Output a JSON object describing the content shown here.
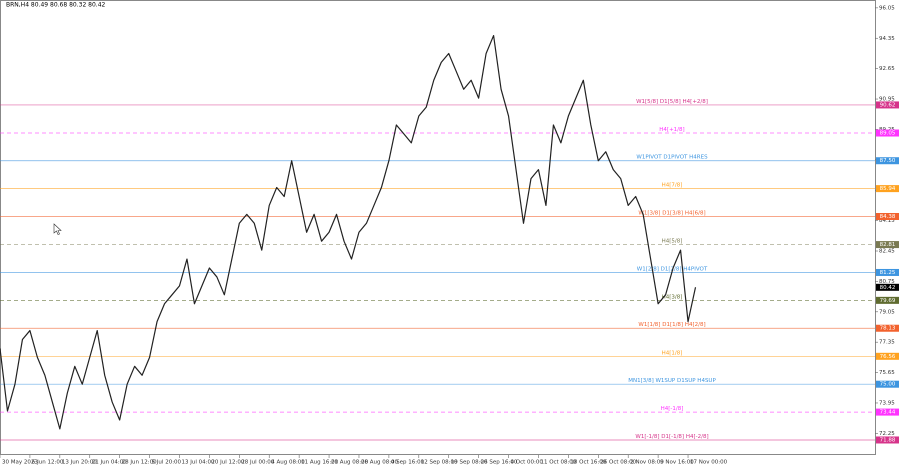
{
  "chart_data": {
    "type": "line",
    "symbol_info": "BRN,H4 80.49 80.68 80.32 80.42",
    "ylim": [
      71.04,
      96.49
    ],
    "yticks": [
      96.05,
      94.35,
      92.65,
      90.95,
      89.25,
      87.55,
      85.85,
      84.15,
      82.45,
      80.75,
      79.05,
      77.35,
      75.65,
      73.95,
      72.25
    ],
    "xlim": [
      0,
      117
    ],
    "xticks": [
      {
        "value": 0,
        "label": "30 May 2023"
      },
      {
        "value": 4,
        "label": "6 Jun 12:00"
      },
      {
        "value": 8,
        "label": "13 Jun 20:00"
      },
      {
        "value": 12,
        "label": "21 Jun 04:00"
      },
      {
        "value": 16,
        "label": "28 Jun 12:00"
      },
      {
        "value": 20,
        "label": "5 Jul 20:00"
      },
      {
        "value": 24,
        "label": "13 Jul 04:00"
      },
      {
        "value": 28,
        "label": "20 Jul 12:00"
      },
      {
        "value": 32,
        "label": "28 Jul 00:00"
      },
      {
        "value": 36,
        "label": "4 Aug 08:00"
      },
      {
        "value": 40,
        "label": "11 Aug 16:00"
      },
      {
        "value": 44,
        "label": "21 Aug 08:00"
      },
      {
        "value": 48,
        "label": "28 Aug 08:00"
      },
      {
        "value": 52,
        "label": "4 Sep 16:00"
      },
      {
        "value": 56,
        "label": "12 Sep 08:00"
      },
      {
        "value": 60,
        "label": "19 Sep 08:00"
      },
      {
        "value": 64,
        "label": "26 Sep 16:00"
      },
      {
        "value": 68,
        "label": "4 Oct 00:00"
      },
      {
        "value": 72,
        "label": "11 Oct 08:00"
      },
      {
        "value": 76,
        "label": "18 Oct 16:00"
      },
      {
        "value": 80,
        "label": "26 Oct 08:00"
      },
      {
        "value": 84,
        "label": "2 Nov 08:00"
      },
      {
        "value": 88,
        "label": "9 Nov 16:00"
      },
      {
        "value": 92,
        "label": "17 Nov 00:00"
      }
    ],
    "series": [
      {
        "name": "BRN,H4",
        "color": "#222222",
        "values": [
          77.0,
          73.5,
          75.0,
          77.5,
          78.0,
          76.5,
          75.5,
          74.0,
          72.5,
          74.5,
          76.0,
          75.0,
          76.5,
          78.0,
          75.5,
          74.0,
          73.0,
          75.0,
          76.0,
          75.5,
          76.5,
          78.5,
          79.5,
          80.0,
          80.5,
          82.0,
          79.5,
          80.5,
          81.5,
          81.0,
          80.0,
          82.0,
          84.0,
          84.5,
          84.0,
          82.5,
          85.0,
          86.0,
          85.5,
          87.5,
          85.5,
          83.5,
          84.5,
          83.0,
          83.5,
          84.5,
          83.0,
          82.0,
          83.5,
          84.0,
          85.0,
          86.0,
          87.5,
          89.5,
          89.0,
          88.5,
          90.0,
          90.5,
          92.0,
          93.0,
          93.5,
          92.5,
          91.5,
          92.0,
          91.0,
          93.5,
          94.5,
          91.5,
          90.0,
          87.0,
          84.0,
          86.5,
          87.0,
          85.0,
          89.5,
          88.5,
          90.0,
          91.0,
          92.0,
          89.5,
          87.5,
          88.0,
          87.0,
          86.5,
          85.0,
          85.5,
          84.5,
          82.0,
          79.5,
          80.0,
          81.5,
          82.5,
          78.5,
          80.42
        ]
      }
    ],
    "levels": [
      {
        "value": 90.62,
        "label": "W1[5/8] D1[5/8] H4[+2/8]",
        "color": "#d6338a",
        "dashed": false
      },
      {
        "value": 89.05,
        "label": "H4[+1/8]",
        "color": "#ff33ff",
        "dashed": true
      },
      {
        "value": 87.5,
        "value_label": "87.50",
        "label": "W1PIVOT D1PIVOT H4RES",
        "color": "#3d95e0",
        "dashed": false
      },
      {
        "value": 85.94,
        "label": "H4[7/8]",
        "color": "#ffa21f",
        "dashed": false
      },
      {
        "value": 84.38,
        "label": "W1[3/8] D1[3/8] H4[6/8]",
        "color": "#f2622e",
        "dashed": false
      },
      {
        "value": 82.81,
        "label": "H4[5/8]",
        "color": "#7a7a52",
        "dashed": true
      },
      {
        "value": 81.25,
        "label": "W1[2/8] D1[2/8] H4PIVOT",
        "color": "#3d95e0",
        "dashed": false
      },
      {
        "value": 79.69,
        "label": "H4[3/8]",
        "color": "#5f6b2f",
        "dashed": true
      },
      {
        "value": 78.13,
        "label": "W1[1/8] D1[1/8] H4[2/8]",
        "color": "#f2622e",
        "dashed": false
      },
      {
        "value": 76.56,
        "label": "H4[1/8]",
        "color": "#ffa21f",
        "dashed": false
      },
      {
        "value": 75.0,
        "value_label": "75.00",
        "label": "MN1[3/8] W1SUP D1SUP H4SUP",
        "color": "#3d95e0",
        "dashed": false
      },
      {
        "value": 73.44,
        "label": "H4[-1/8]",
        "color": "#ff33ff",
        "dashed": true
      },
      {
        "value": 71.88,
        "label": "W1[-1/8] D1[-1/8] H4[-2/8]",
        "color": "#d6338a",
        "dashed": false
      }
    ],
    "current_price": 80.42
  }
}
